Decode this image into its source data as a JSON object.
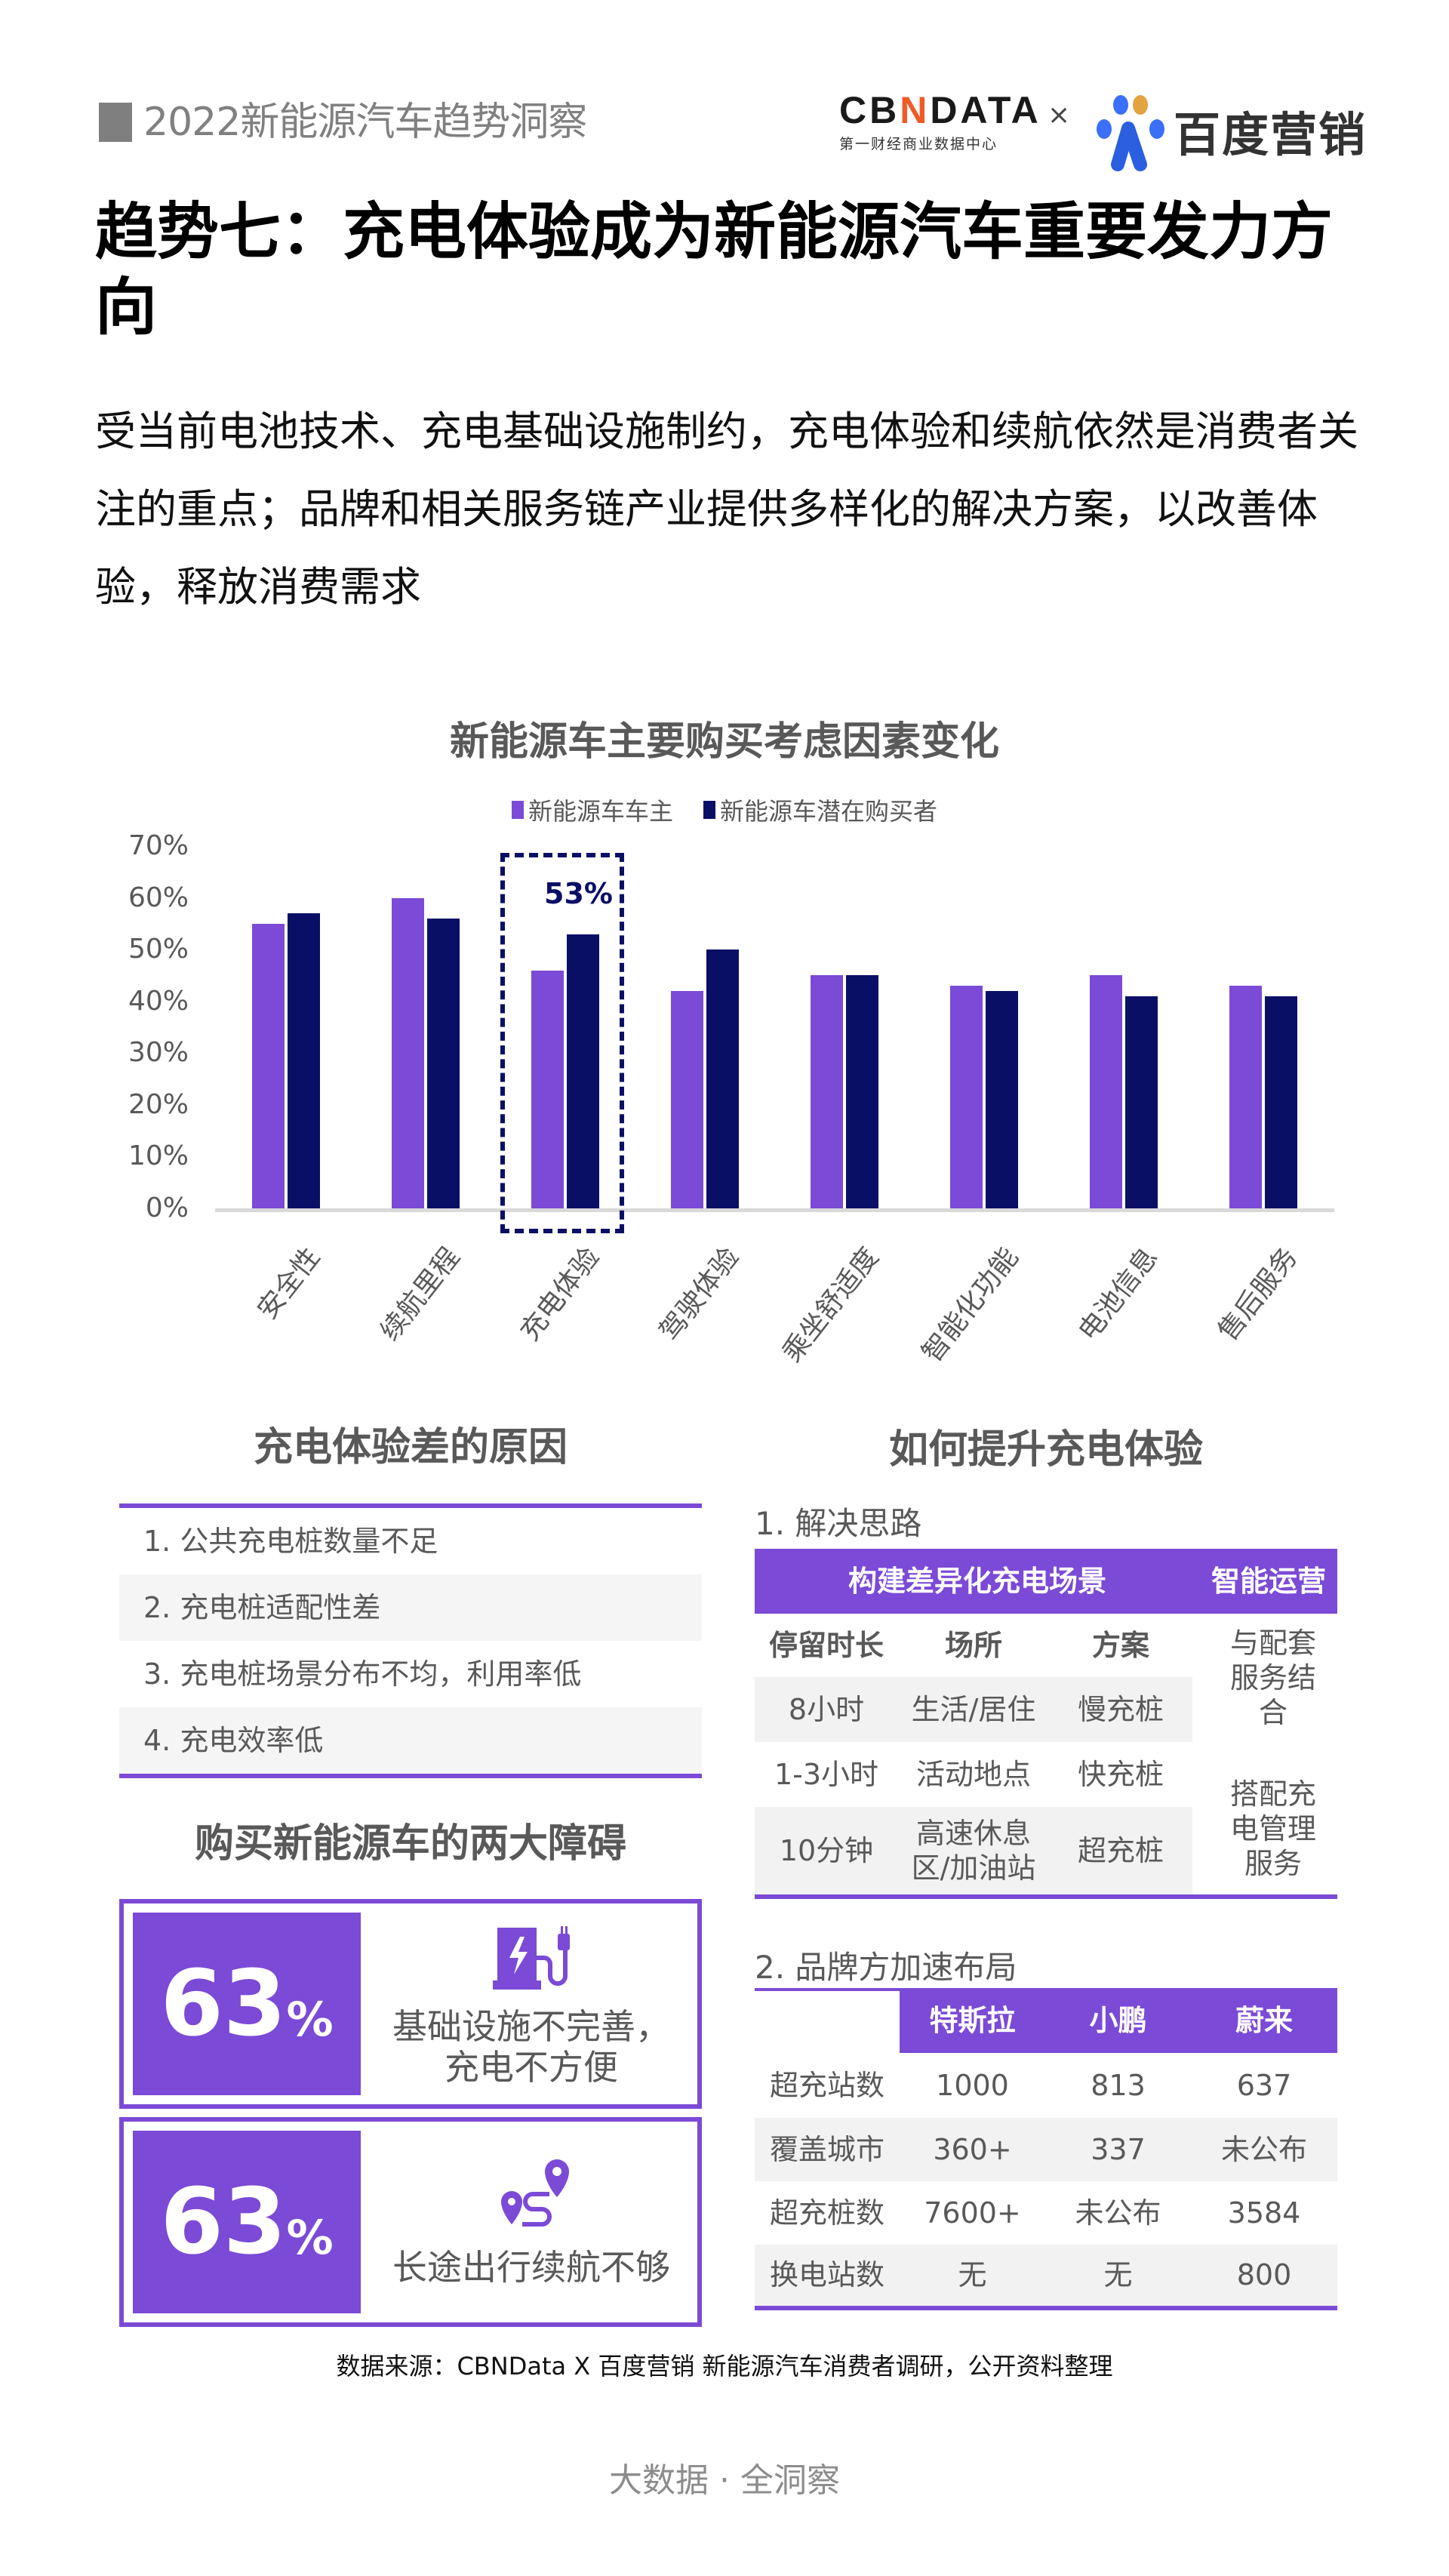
{
  "header": {
    "report_title": "2022新能源汽车趋势洞察",
    "logo_cbn_prefix": "CB",
    "logo_cbn_n": "N",
    "logo_cbn_suffix": "DATA",
    "logo_cbn_sub": "第一财经商业数据中心",
    "logo_separator": "×",
    "logo_baidu": "百度营销"
  },
  "title": "趋势七：充电体验成为新能源汽车重要发力方向",
  "lead": "受当前电池技术、充电基础设施制约，充电体验和续航依然是消费者关注的重点；品牌和相关服务链产业提供多样化的解决方案，以改善体验，释放消费需求",
  "chart_data": {
    "type": "bar",
    "title": "新能源车主要购买考虑因素变化",
    "categories": [
      "安全性",
      "续航里程",
      "充电体验",
      "驾驶体验",
      "乘坐舒适度",
      "智能化功能",
      "电池信息",
      "售后服务"
    ],
    "series": [
      {
        "name": "新能源车车主",
        "color": "#7b4ad6",
        "values": [
          55,
          60,
          46,
          42,
          45,
          43,
          45,
          43
        ]
      },
      {
        "name": "新能源车潜在购买者",
        "color": "#0a0f66",
        "values": [
          57,
          56,
          53,
          50,
          45,
          42,
          41,
          41
        ]
      }
    ],
    "yticks": [
      "70%",
      "60%",
      "50%",
      "40%",
      "30%",
      "20%",
      "10%",
      "0%"
    ],
    "ylim": [
      0,
      70
    ],
    "xlabel": "",
    "ylabel": "",
    "grid": false,
    "legend_position": "top",
    "annotation": {
      "category": "充电体验",
      "label": "53%",
      "highlight": "dashed-box"
    }
  },
  "reasons": {
    "title": "充电体验差的原因",
    "items": [
      "1. 公共充电桩数量不足",
      "2. 充电桩适配性差",
      "3. 充电桩场景分布不均，利用率低",
      "4. 充电效率低"
    ]
  },
  "barriers": {
    "title": "购买新能源车的两大障碍",
    "items": [
      {
        "value": "63",
        "unit": "%",
        "icon": "charging-station-icon",
        "text_line1": "基础设施不完善，",
        "text_line2": "充电不方便"
      },
      {
        "value": "63",
        "unit": "%",
        "icon": "route-pin-icon",
        "text_line1": "长途出行续航不够",
        "text_line2": ""
      }
    ]
  },
  "improve": {
    "title": "如何提升充电体验",
    "solution": {
      "subtitle": "1. 解决思路",
      "band_left": "构建差异化充电场景",
      "band_right": "智能运营",
      "headers": [
        "停留时长",
        "场所",
        "方案"
      ],
      "rows": [
        [
          "8小时",
          "生活/居住",
          "慢充桩"
        ],
        [
          "1-3小时",
          "活动地点",
          "快充桩"
        ],
        [
          "10分钟",
          "高速休息区/加油站",
          "超充桩"
        ]
      ],
      "ops": [
        "与配套服务结合",
        "搭配充电管理服务"
      ]
    },
    "brands": {
      "subtitle": "2. 品牌方加速布局",
      "headers": [
        "特斯拉",
        "小鹏",
        "蔚来"
      ],
      "rows": [
        {
          "label": "超充站数",
          "values": [
            "1000",
            "813",
            "637"
          ]
        },
        {
          "label": "覆盖城市",
          "values": [
            "360+",
            "337",
            "未公布"
          ]
        },
        {
          "label": "超充桩数",
          "values": [
            "7600+",
            "未公布",
            "3584"
          ]
        },
        {
          "label": "换电站数",
          "values": [
            "无",
            "无",
            "800"
          ]
        }
      ]
    }
  },
  "source": "数据来源：CBNData X 百度营销 新能源汽车消费者调研，公开资料整理",
  "footer": "大数据 · 全洞察",
  "colors": {
    "purple": "#7b4ad6",
    "navy": "#0a0f66",
    "gray_text": "#595959"
  }
}
